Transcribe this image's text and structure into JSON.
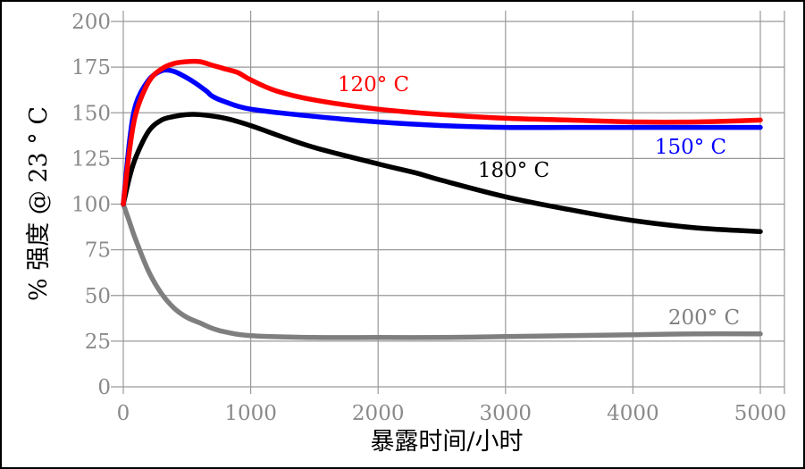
{
  "chart_data": {
    "type": "line",
    "xlabel": "暴露时间/小时",
    "ylabel": "% 强度 @ 23 ° C",
    "xlim": [
      0,
      5000
    ],
    "ylim": [
      0,
      200
    ],
    "x_ticks": [
      "0",
      "1000",
      "2000",
      "3000",
      "4000",
      "5000"
    ],
    "y_ticks": [
      "0",
      "25",
      "50",
      "75",
      "100",
      "125",
      "150",
      "175",
      "200"
    ],
    "grid": true,
    "series": [
      {
        "name": "120° C",
        "color": "#ff0000",
        "points": [
          [
            0,
            100
          ],
          [
            50,
            130
          ],
          [
            100,
            150
          ],
          [
            200,
            167
          ],
          [
            300,
            174
          ],
          [
            400,
            177
          ],
          [
            500,
            178
          ],
          [
            600,
            178
          ],
          [
            700,
            176
          ],
          [
            800,
            174
          ],
          [
            900,
            172
          ],
          [
            1000,
            168
          ],
          [
            1200,
            162
          ],
          [
            1500,
            157
          ],
          [
            2000,
            152
          ],
          [
            2500,
            149
          ],
          [
            3000,
            147
          ],
          [
            3500,
            146
          ],
          [
            4000,
            145
          ],
          [
            4500,
            145
          ],
          [
            5000,
            146
          ]
        ]
      },
      {
        "name": "150° C",
        "color": "#0000ff",
        "points": [
          [
            0,
            100
          ],
          [
            50,
            135
          ],
          [
            100,
            155
          ],
          [
            200,
            168
          ],
          [
            300,
            173
          ],
          [
            380,
            173
          ],
          [
            450,
            171
          ],
          [
            550,
            167
          ],
          [
            650,
            162
          ],
          [
            700,
            159
          ],
          [
            800,
            156
          ],
          [
            1000,
            152
          ],
          [
            1500,
            148
          ],
          [
            2000,
            145
          ],
          [
            2500,
            143
          ],
          [
            3000,
            142
          ],
          [
            3500,
            142
          ],
          [
            4000,
            142
          ],
          [
            4500,
            142
          ],
          [
            5000,
            142
          ]
        ]
      },
      {
        "name": "180° C",
        "color": "#000000",
        "points": [
          [
            0,
            100
          ],
          [
            50,
            115
          ],
          [
            100,
            126
          ],
          [
            200,
            140
          ],
          [
            300,
            146
          ],
          [
            400,
            148
          ],
          [
            500,
            149
          ],
          [
            600,
            149
          ],
          [
            800,
            147
          ],
          [
            1000,
            143
          ],
          [
            1200,
            138
          ],
          [
            1500,
            131
          ],
          [
            2000,
            122
          ],
          [
            2300,
            117
          ],
          [
            2500,
            113
          ],
          [
            3000,
            104
          ],
          [
            3500,
            97
          ],
          [
            4000,
            91
          ],
          [
            4500,
            87
          ],
          [
            5000,
            85
          ]
        ]
      },
      {
        "name": "200° C",
        "color": "#7f7f7f",
        "points": [
          [
            0,
            100
          ],
          [
            50,
            90
          ],
          [
            100,
            80
          ],
          [
            200,
            63
          ],
          [
            300,
            51
          ],
          [
            400,
            43
          ],
          [
            500,
            38
          ],
          [
            600,
            35
          ],
          [
            700,
            32
          ],
          [
            800,
            30
          ],
          [
            1000,
            28
          ],
          [
            1500,
            27
          ],
          [
            2000,
            27
          ],
          [
            2500,
            27
          ],
          [
            3000,
            27.5
          ],
          [
            3500,
            28
          ],
          [
            4000,
            28.5
          ],
          [
            4500,
            29
          ],
          [
            5000,
            29
          ]
        ]
      }
    ],
    "annotations": [
      {
        "series": "120° C",
        "text": "120° C",
        "color": "#ff0000"
      },
      {
        "series": "150° C",
        "text": "150° C",
        "color": "#0000ff"
      },
      {
        "series": "180° C",
        "text": "180° C",
        "color": "#000000"
      },
      {
        "series": "200° C",
        "text": "200° C",
        "color": "#7f7f7f"
      }
    ]
  }
}
